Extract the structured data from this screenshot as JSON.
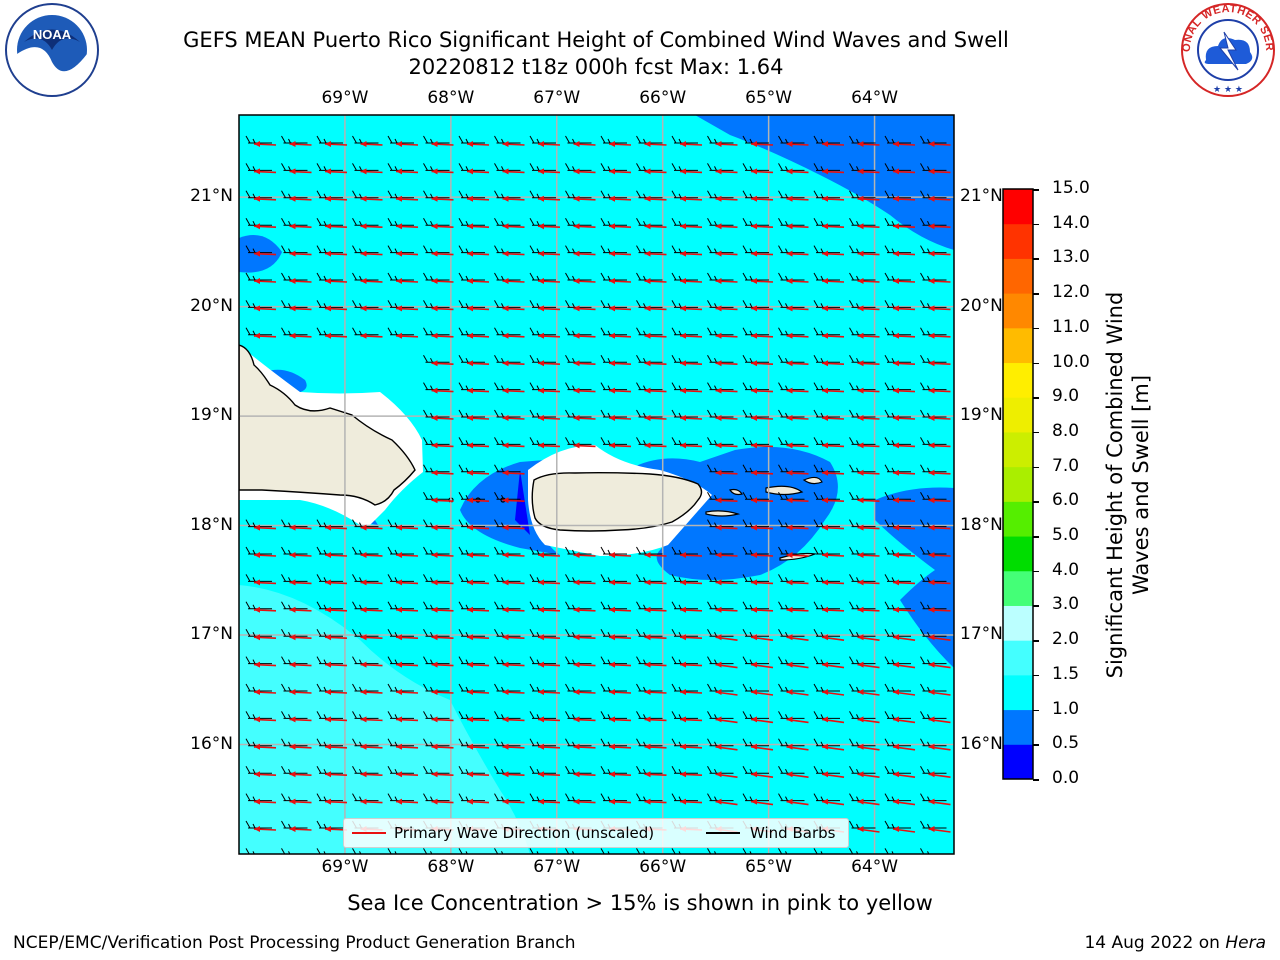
{
  "header": {
    "title": "GEFS MEAN Puerto Rico Significant Height of Combined Wind Waves and Swell",
    "subtitle": "20220812 t18z 000h fcst   Max: 1.64"
  },
  "logos": {
    "noaa_text": "NOAA",
    "nws_text": "NATIONAL WEATHER SERVICE"
  },
  "map": {
    "lon_ticks": [
      "69°W",
      "68°W",
      "67°W",
      "66°W",
      "65°W",
      "64°W"
    ],
    "lat_ticks": [
      "21°N",
      "20°N",
      "19°N",
      "18°N",
      "17°N",
      "16°N"
    ],
    "lon_values": [
      -69,
      -68,
      -67,
      -66,
      -65,
      -64
    ],
    "lat_values": [
      21,
      20,
      19,
      18,
      17,
      16
    ],
    "extent": {
      "lon_min": -70,
      "lon_max": -63.25,
      "lat_min": 15,
      "lat_max": 21.75
    },
    "wind_direction": "east",
    "wave_direction": "from east",
    "colors": {
      "land": "#efecdc",
      "coast": "#000000",
      "grid": "#b4b4b4",
      "wave_arrow": "#e81010",
      "barb": "#000000"
    }
  },
  "colorbar": {
    "label": "Significant Height of Combined Wind Waves and Swell [m]",
    "ticks": [
      "15.0",
      "14.0",
      "13.0",
      "12.0",
      "11.0",
      "10.0",
      "9.0",
      "8.0",
      "7.0",
      "6.0",
      "5.0",
      "4.0",
      "3.0",
      "2.0",
      "1.5",
      "1.0",
      "0.5",
      "0.0"
    ],
    "bands": [
      {
        "from": 0.0,
        "to": 0.5,
        "color": "#0000ff"
      },
      {
        "from": 0.5,
        "to": 1.0,
        "color": "#0077ff"
      },
      {
        "from": 1.0,
        "to": 1.5,
        "color": "#00ffff"
      },
      {
        "from": 1.5,
        "to": 2.0,
        "color": "#44ffff"
      },
      {
        "from": 2.0,
        "to": 3.0,
        "color": "#bbffff"
      },
      {
        "from": 3.0,
        "to": 4.0,
        "color": "#44ff77"
      },
      {
        "from": 4.0,
        "to": 5.0,
        "color": "#00dd00"
      },
      {
        "from": 5.0,
        "to": 6.0,
        "color": "#55ee00"
      },
      {
        "from": 6.0,
        "to": 7.0,
        "color": "#aaee00"
      },
      {
        "from": 7.0,
        "to": 8.0,
        "color": "#ccee00"
      },
      {
        "from": 8.0,
        "to": 9.0,
        "color": "#eeee00"
      },
      {
        "from": 9.0,
        "to": 10.0,
        "color": "#ffee00"
      },
      {
        "from": 10.0,
        "to": 11.0,
        "color": "#ffbb00"
      },
      {
        "from": 11.0,
        "to": 12.0,
        "color": "#ff8800"
      },
      {
        "from": 12.0,
        "to": 13.0,
        "color": "#ff6600"
      },
      {
        "from": 13.0,
        "to": 14.0,
        "color": "#ff3300"
      },
      {
        "from": 14.0,
        "to": 15.0,
        "color": "#ff0000"
      }
    ]
  },
  "legend": {
    "wave_label": "Primary Wave Direction (unscaled)",
    "barb_label": "Wind Barbs",
    "wave_color": "#e81010",
    "barb_color": "#000000"
  },
  "note": "Sea Ice Concentration > 15% is shown in pink to yellow",
  "footer": {
    "left": "NCEP/EMC/Verification Post Processing Product Generation Branch",
    "right_prefix": "14 Aug 2022 on ",
    "right_machine": "Hera"
  }
}
